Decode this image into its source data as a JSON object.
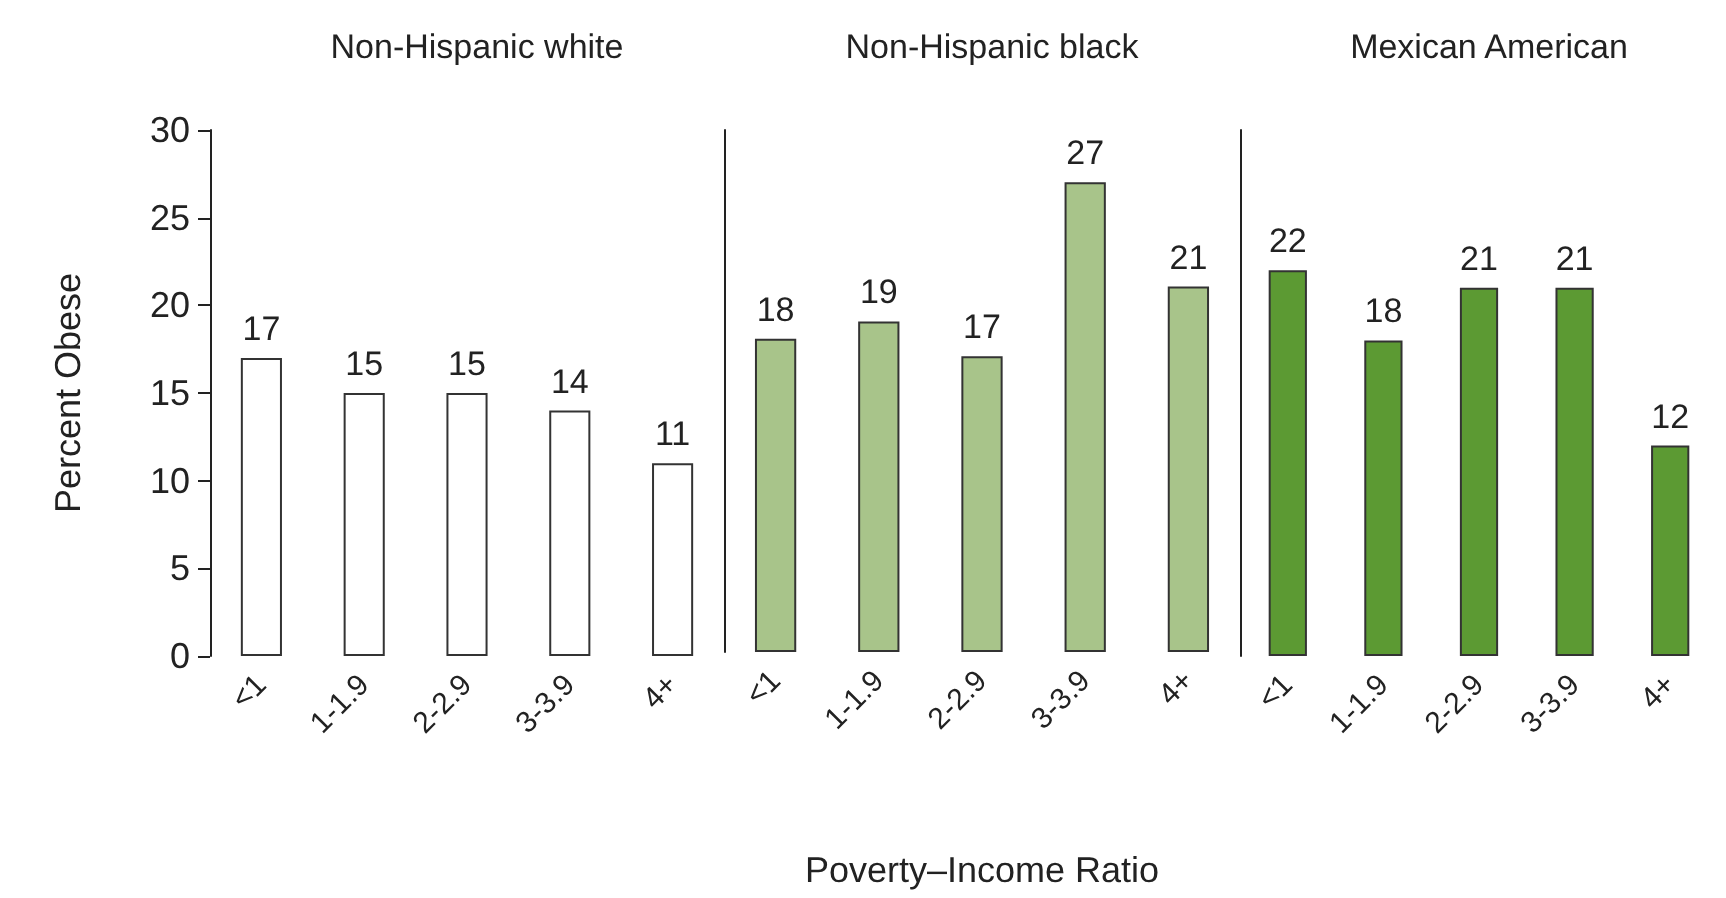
{
  "chart_data": [
    {
      "type": "bar",
      "title": "Non-Hispanic white",
      "ylabel": "Percent Obese",
      "categories": [
        "<1",
        "1-1.9",
        "2-2.9",
        "3-3.9",
        "4+"
      ],
      "values": [
        17,
        15,
        15,
        14,
        11
      ],
      "color": "#ffffff",
      "ylim": [
        0,
        30
      ],
      "yticks": [
        0,
        5,
        10,
        15,
        20,
        25,
        30
      ],
      "data_labels": true
    },
    {
      "type": "bar",
      "title": "Non-Hispanic black",
      "xlabel": "Poverty–Income Ratio",
      "categories": [
        "<1",
        "1-1.9",
        "2-2.9",
        "3-3.9",
        "4+"
      ],
      "values": [
        18,
        19,
        17,
        27,
        21
      ],
      "color": "#a8c48a",
      "ylim": [
        0,
        30
      ],
      "yticks": [
        0,
        5,
        10,
        15,
        20,
        25,
        30
      ],
      "data_labels": true,
      "tick_labels": "x"
    },
    {
      "type": "bar",
      "title": "Mexican American",
      "categories": [
        "<1",
        "1-1.9",
        "2-2.9",
        "3-3.9",
        "4+"
      ],
      "values": [
        22,
        18,
        21,
        21,
        12
      ],
      "color": "#5c9a33",
      "ylim": [
        0,
        30
      ],
      "yticks": [
        0,
        5,
        10,
        15,
        20,
        25,
        30
      ],
      "data_labels": true,
      "tick_labels": "x"
    }
  ]
}
